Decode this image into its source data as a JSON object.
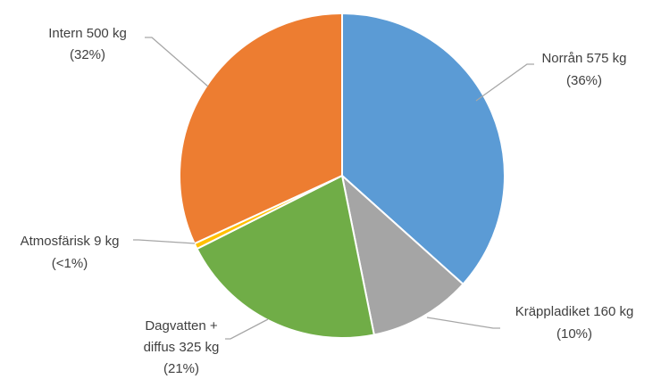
{
  "chart_data": {
    "type": "pie",
    "title": "",
    "legend": "none",
    "slices": [
      {
        "name": "Norrån",
        "value": 575,
        "unit": "kg",
        "label_line1": "Norrån 575 kg",
        "label_line2": "(36%)",
        "color": "#5b9bd5"
      },
      {
        "name": "Kräppladiket",
        "value": 160,
        "unit": "kg",
        "label_line1": "Kräppladiket 160 kg",
        "label_line2": "(10%)",
        "color": "#a5a5a5"
      },
      {
        "name": "Dagvatten + diffus",
        "value": 325,
        "unit": "kg",
        "label_line1": "Dagvatten +",
        "label_line2": "diffus 325 kg",
        "label_line3": "(21%)",
        "color": "#70ad47"
      },
      {
        "name": "Atmosfärisk",
        "value": 9,
        "unit": "kg",
        "label_line1": "Atmosfärisk 9 kg",
        "label_line2": "(<1%)",
        "color": "#ffc000"
      },
      {
        "name": "Intern",
        "value": 500,
        "unit": "kg",
        "label_line1": "Intern 500 kg",
        "label_line2": "(32%)",
        "color": "#ed7d31"
      }
    ]
  }
}
